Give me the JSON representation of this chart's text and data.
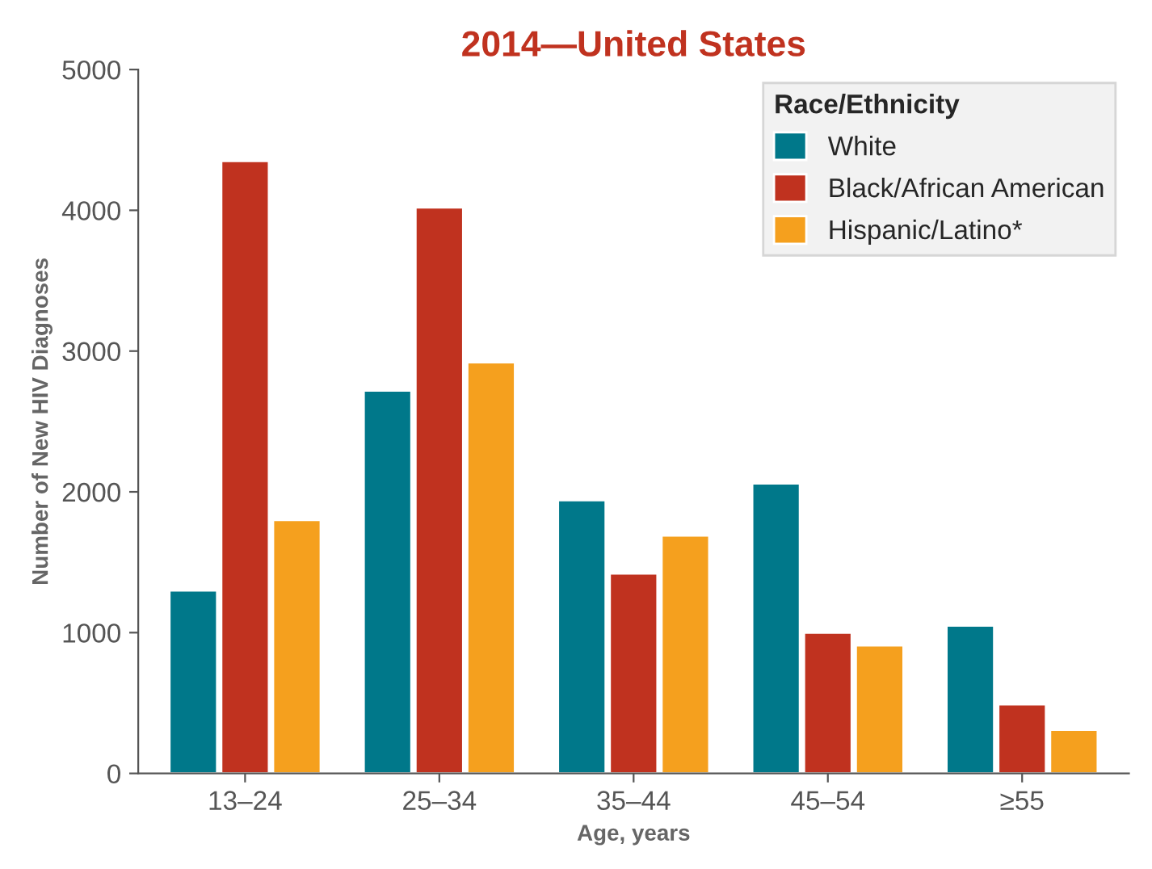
{
  "chart_data": {
    "type": "bar",
    "title": "2014—United States",
    "xlabel": "Age, years",
    "ylabel": "Number of New HIV Diagnoses",
    "categories": [
      "13–24",
      "25–34",
      "35–44",
      "45–54",
      "≥55"
    ],
    "series": [
      {
        "name": "White",
        "color": "#00788a",
        "values": [
          1300,
          2720,
          1940,
          2060,
          1050
        ]
      },
      {
        "name": "Black/African American",
        "color": "#c0321f",
        "values": [
          4350,
          4020,
          1420,
          1000,
          490
        ]
      },
      {
        "name": "Hispanic/Latino*",
        "color": "#f5a01e",
        "values": [
          1800,
          2920,
          1690,
          910,
          310
        ]
      }
    ],
    "ylim": [
      0,
      5000
    ],
    "yticks": [
      0,
      1000,
      2000,
      3000,
      4000,
      5000
    ],
    "legend_title": "Race/Ethnicity",
    "legend": "top right",
    "grid": false
  }
}
